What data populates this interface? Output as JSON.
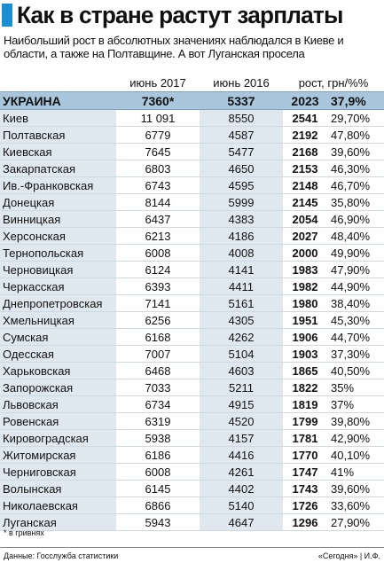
{
  "title": "Как в стране растут зарплаты",
  "subtitle": "Наибольший рост в абсолютных значениях наблюдался в Киеве и области, а также на Полтавщине. А вот Луганская просела",
  "headers": {
    "june2017": "июнь 2017",
    "june2016": "июнь 2016",
    "growth": "рост, грн/%%"
  },
  "total": {
    "name": "УКРАИНА",
    "june2017": "7360*",
    "june2016": "5337",
    "abs": "2023",
    "pct": "37,9%"
  },
  "rows": [
    {
      "name": "Киев",
      "june2017": "11 091",
      "june2016": "8550",
      "abs": "2541",
      "pct": "29,70%"
    },
    {
      "name": "Полтавская",
      "june2017": "6779",
      "june2016": "4587",
      "abs": "2192",
      "pct": "47,80%"
    },
    {
      "name": "Киевская",
      "june2017": "7645",
      "june2016": "5477",
      "abs": "2168",
      "pct": "39,60%"
    },
    {
      "name": "Закарпатская",
      "june2017": "6803",
      "june2016": "4650",
      "abs": "2153",
      "pct": "46,30%"
    },
    {
      "name": "Ив.-Франковская",
      "june2017": "6743",
      "june2016": "4595",
      "abs": "2148",
      "pct": "46,70%"
    },
    {
      "name": "Донецкая",
      "june2017": "8144",
      "june2016": "5999",
      "abs": "2145",
      "pct": "35,80%"
    },
    {
      "name": "Винницкая",
      "june2017": "6437",
      "june2016": "4383",
      "abs": "2054",
      "pct": "46,90%"
    },
    {
      "name": "Херсонская",
      "june2017": "6213",
      "june2016": "4186",
      "abs": "2027",
      "pct": "48,40%"
    },
    {
      "name": "Тернопольская",
      "june2017": "6008",
      "june2016": "4008",
      "abs": "2000",
      "pct": "49,90%"
    },
    {
      "name": "Черновицкая",
      "june2017": "6124",
      "june2016": "4141",
      "abs": "1983",
      "pct": "47,90%"
    },
    {
      "name": "Черкасская",
      "june2017": "6393",
      "june2016": "4411",
      "abs": "1982",
      "pct": "44,90%"
    },
    {
      "name": "Днепропетровская",
      "june2017": "7141",
      "june2016": "5161",
      "abs": "1980",
      "pct": "38,40%"
    },
    {
      "name": "Хмельницкая",
      "june2017": "6256",
      "june2016": "4305",
      "abs": "1951",
      "pct": "45,30%"
    },
    {
      "name": "Сумская",
      "june2017": "6168",
      "june2016": "4262",
      "abs": "1906",
      "pct": "44,70%"
    },
    {
      "name": "Одесская",
      "june2017": "7007",
      "june2016": "5104",
      "abs": "1903",
      "pct": "37,30%"
    },
    {
      "name": "Харьковская",
      "june2017": "6468",
      "june2016": "4603",
      "abs": "1865",
      "pct": "40,50%"
    },
    {
      "name": "Запорожская",
      "june2017": "7033",
      "june2016": "5211",
      "abs": "1822",
      "pct": "35%"
    },
    {
      "name": "Львовская",
      "june2017": "6734",
      "june2016": "4915",
      "abs": "1819",
      "pct": "37%"
    },
    {
      "name": "Ровенская",
      "june2017": "6319",
      "june2016": "4520",
      "abs": "1799",
      "pct": "39,80%"
    },
    {
      "name": "Кировоградская",
      "june2017": "5938",
      "june2016": "4157",
      "abs": "1781",
      "pct": "42,90%"
    },
    {
      "name": "Житомирская",
      "june2017": "6186",
      "june2016": "4416",
      "abs": "1770",
      "pct": "40,10%"
    },
    {
      "name": "Черниговская",
      "june2017": "6008",
      "june2016": "4261",
      "abs": "1747",
      "pct": "41%"
    },
    {
      "name": "Волынская",
      "june2017": "6145",
      "june2016": "4402",
      "abs": "1743",
      "pct": "39,60%"
    },
    {
      "name": "Николаевская",
      "june2017": "6866",
      "june2016": "5140",
      "abs": "1726",
      "pct": "33,60%"
    },
    {
      "name": "Луганская",
      "june2017": "5943",
      "june2016": "4647",
      "abs": "1296",
      "pct": "27,90%"
    }
  ],
  "footnote": "* в гривнях",
  "footer": {
    "source": "Данные: Госслужба статистики",
    "credit": "«Сегодня» | И.Ф."
  },
  "colors": {
    "accent": "#1b8fd1",
    "total_band": "#a9c6dc",
    "row_shade": "#dfe8ef"
  }
}
